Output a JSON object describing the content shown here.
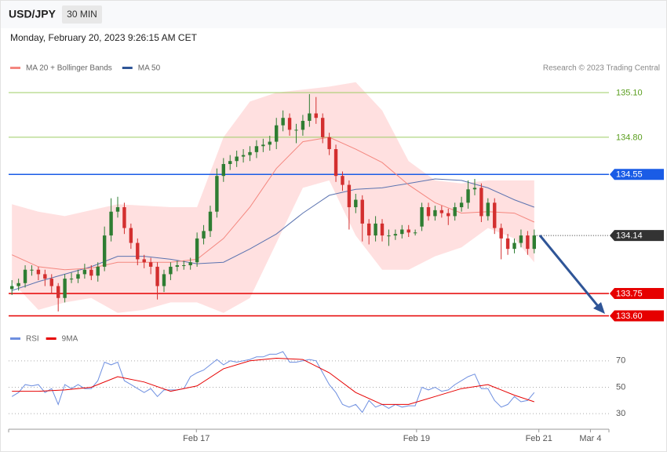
{
  "chart_data": {
    "type": "candlestick",
    "title": "USD/JPY",
    "timeframe": "30 MIN",
    "subtitle": "Monday, February 20, 2023 9:26:15 AM CET",
    "credit": "Research © 2023 Trading Central",
    "up_color": "#2e7d32",
    "down_color": "#d32f2f",
    "xlim": [
      -0.5,
      90.3
    ],
    "ylim": [
      133.55,
      135.2
    ],
    "xticks": [
      {
        "value": 27.9,
        "label": "Feb 17"
      },
      {
        "value": 61.2,
        "label": "Feb 19"
      },
      {
        "value": 79.7,
        "label": "Feb 21"
      },
      {
        "value": 87.5,
        "label": "Mar 4"
      }
    ],
    "legend": [
      {
        "name": "MA 20 + Bollinger Bands",
        "color": "#f4877f"
      },
      {
        "name": "MA 50",
        "color": "#2f5597"
      }
    ],
    "open": [
      133.78,
      133.8,
      133.82,
      133.91,
      133.91,
      133.88,
      133.85,
      133.8,
      133.72,
      133.85,
      133.85,
      133.88,
      133.91,
      133.87,
      133.93,
      134.14,
      134.3,
      134.33,
      134.19,
      134.09,
      133.98,
      133.96,
      133.93,
      133.8,
      133.88,
      133.93,
      133.94,
      133.94,
      133.96,
      134.12,
      134.17,
      134.3,
      134.54,
      134.62,
      134.64,
      134.67,
      134.68,
      134.7,
      134.74,
      134.75,
      134.77,
      134.88,
      134.93,
      134.85,
      134.85,
      134.91,
      134.96,
      134.93,
      134.8,
      134.72,
      134.54,
      134.48,
      134.33,
      134.38,
      134.22,
      134.14,
      134.22,
      134.14,
      134.14,
      134.15,
      134.18,
      134.16,
      134.2,
      134.33,
      134.27,
      134.31,
      134.29,
      134.27,
      134.33,
      134.36,
      134.45,
      134.46,
      134.27,
      134.36,
      134.19,
      134.12,
      134.05,
      134.09,
      134.14,
      134.05
    ],
    "high": [
      133.84,
      133.85,
      133.94,
      133.94,
      133.93,
      133.91,
      133.88,
      133.82,
      133.88,
      133.89,
      133.91,
      133.95,
      133.94,
      133.96,
      134.2,
      134.39,
      134.4,
      134.36,
      134.22,
      134.12,
      134.01,
      133.99,
      133.96,
      133.91,
      133.96,
      133.97,
      133.97,
      133.99,
      134.16,
      134.21,
      134.34,
      134.59,
      134.66,
      134.68,
      134.71,
      134.72,
      134.74,
      134.78,
      134.79,
      134.81,
      134.93,
      134.98,
      134.96,
      134.89,
      134.95,
      135.09,
      135.07,
      134.96,
      134.83,
      134.75,
      134.57,
      134.51,
      134.42,
      134.41,
      134.25,
      134.27,
      134.25,
      134.18,
      134.18,
      134.21,
      134.21,
      134.18,
      134.36,
      134.36,
      134.34,
      134.34,
      134.32,
      134.36,
      134.4,
      134.51,
      134.52,
      134.49,
      134.39,
      134.39,
      134.22,
      134.15,
      134.12,
      134.18,
      134.17,
      134.18
    ],
    "low": [
      133.74,
      133.77,
      133.79,
      133.87,
      133.84,
      133.8,
      133.75,
      133.63,
      133.69,
      133.82,
      133.82,
      133.85,
      133.84,
      133.83,
      133.9,
      134.1,
      134.26,
      134.15,
      134.05,
      133.94,
      133.92,
      133.88,
      133.71,
      133.76,
      133.84,
      133.9,
      133.91,
      133.91,
      133.93,
      134.08,
      134.13,
      134.26,
      134.5,
      134.58,
      134.6,
      134.63,
      134.64,
      134.66,
      134.7,
      134.71,
      134.72,
      134.84,
      134.81,
      134.76,
      134.81,
      134.87,
      134.89,
      134.76,
      134.68,
      134.5,
      134.44,
      134.18,
      134.29,
      134.1,
      134.08,
      134.1,
      134.1,
      134.07,
      134.11,
      134.12,
      134.13,
      134.14,
      134.17,
      134.24,
      134.24,
      134.26,
      134.21,
      134.24,
      134.3,
      134.32,
      134.41,
      134.23,
      134.24,
      134.15,
      133.98,
      134.01,
      134.02,
      134.06,
      134.01,
      134.02
    ],
    "close": [
      133.8,
      133.82,
      133.91,
      133.91,
      133.88,
      133.85,
      133.8,
      133.72,
      133.85,
      133.85,
      133.88,
      133.91,
      133.87,
      133.93,
      134.14,
      134.3,
      134.33,
      134.19,
      134.09,
      133.98,
      133.96,
      133.93,
      133.8,
      133.88,
      133.93,
      133.94,
      133.94,
      133.96,
      134.12,
      134.17,
      134.3,
      134.54,
      134.62,
      134.64,
      134.67,
      134.68,
      134.7,
      134.74,
      134.75,
      134.77,
      134.88,
      134.93,
      134.85,
      134.85,
      134.91,
      134.96,
      134.93,
      134.8,
      134.72,
      134.54,
      134.48,
      134.33,
      134.38,
      134.22,
      134.14,
      134.22,
      134.14,
      134.14,
      134.15,
      134.18,
      134.16,
      134.16,
      134.33,
      134.27,
      134.31,
      134.29,
      134.27,
      134.33,
      134.36,
      134.45,
      134.46,
      134.27,
      134.36,
      134.19,
      134.12,
      134.05,
      134.09,
      134.14,
      134.05,
      134.14
    ],
    "overlays": {
      "x": [
        0,
        4,
        8,
        12,
        16,
        20,
        24,
        28,
        32,
        36,
        40,
        44,
        48,
        52,
        56,
        60,
        64,
        68,
        72,
        76,
        79
      ],
      "band_color": "#ffd6d6",
      "upper": {
        "values": [
          134.35,
          134.3,
          134.27,
          134.31,
          134.35,
          134.34,
          134.33,
          134.33,
          134.8,
          135.04,
          135.1,
          135.12,
          135.14,
          135.17,
          134.98,
          134.64,
          134.51,
          134.49,
          134.51,
          134.51,
          134.51
        ]
      },
      "lower": {
        "values": [
          133.83,
          133.64,
          133.69,
          133.72,
          133.62,
          133.64,
          133.69,
          133.69,
          133.62,
          133.72,
          134.09,
          134.46,
          134.51,
          134.14,
          133.91,
          133.91,
          134.0,
          134.06,
          134.19,
          134.12,
          133.96
        ]
      },
      "ma20": {
        "color": "#f4877f",
        "values": [
          134.01,
          133.93,
          133.91,
          133.92,
          133.96,
          133.96,
          133.96,
          133.98,
          134.12,
          134.33,
          134.59,
          134.77,
          134.8,
          134.72,
          134.63,
          134.48,
          134.36,
          134.29,
          134.3,
          134.29,
          134.23
        ]
      },
      "ma50": {
        "color": "#5b73b0",
        "values": [
          133.77,
          133.83,
          133.88,
          133.93,
          134.0,
          134.0,
          133.98,
          133.95,
          133.96,
          134.05,
          134.15,
          134.29,
          134.41,
          134.45,
          134.46,
          134.49,
          134.52,
          134.51,
          134.46,
          134.38,
          134.33
        ]
      }
    },
    "levels": [
      {
        "value": 135.1,
        "label": "135.10",
        "color": "#9ccc65",
        "text_color": "#5a9e1e",
        "style": "line",
        "box": false
      },
      {
        "value": 134.8,
        "label": "134.80",
        "color": "#9ccc65",
        "text_color": "#5a9e1e",
        "style": "line",
        "box": false
      },
      {
        "value": 134.55,
        "label": "134.55",
        "color": "#1a5ce6",
        "text_color": "#ffffff",
        "style": "line",
        "box": true
      },
      {
        "value": 134.14,
        "label": "134.14",
        "color": "#333333",
        "text_color": "#ffffff",
        "style": "dotted",
        "box": true
      },
      {
        "value": 133.75,
        "label": "133.75",
        "color": "#e60000",
        "text_color": "#ffffff",
        "style": "line",
        "box": true
      },
      {
        "value": 133.6,
        "label": "133.60",
        "color": "#e60000",
        "text_color": "#ffffff",
        "style": "line",
        "box": true
      }
    ],
    "rsi": {
      "ylim": [
        20,
        80
      ],
      "yticks": [
        30,
        50,
        70
      ],
      "series": [
        {
          "name": "RSI",
          "color": "#6e8fe0",
          "values": [
            43,
            46,
            52,
            51,
            52,
            46,
            49,
            37,
            52,
            49,
            52,
            49,
            49,
            55,
            69,
            67,
            69,
            55,
            52,
            49,
            46,
            49,
            43,
            48,
            48,
            48,
            49,
            58,
            61,
            63,
            67,
            71,
            67,
            70,
            69,
            70,
            71,
            73,
            73,
            75,
            75,
            77,
            69,
            69,
            70,
            71,
            70,
            61,
            52,
            46,
            37,
            35,
            37,
            31,
            40,
            35,
            37,
            34,
            37,
            35,
            36,
            36,
            50,
            48,
            50,
            47,
            48,
            52,
            55,
            58,
            60,
            49,
            49,
            40,
            35,
            37,
            43,
            39,
            40,
            46
          ]
        },
        {
          "name": "9MA",
          "color": "#e60000",
          "x": [
            0,
            4,
            8,
            12,
            16,
            20,
            24,
            28,
            32,
            36,
            40,
            44,
            48,
            52,
            56,
            60,
            64,
            68,
            72,
            76,
            79
          ],
          "values": [
            47,
            47,
            48,
            50,
            58,
            54,
            47,
            51,
            64,
            70,
            72,
            71,
            61,
            46,
            37,
            37,
            43,
            49,
            52,
            44,
            39
          ]
        }
      ]
    }
  }
}
